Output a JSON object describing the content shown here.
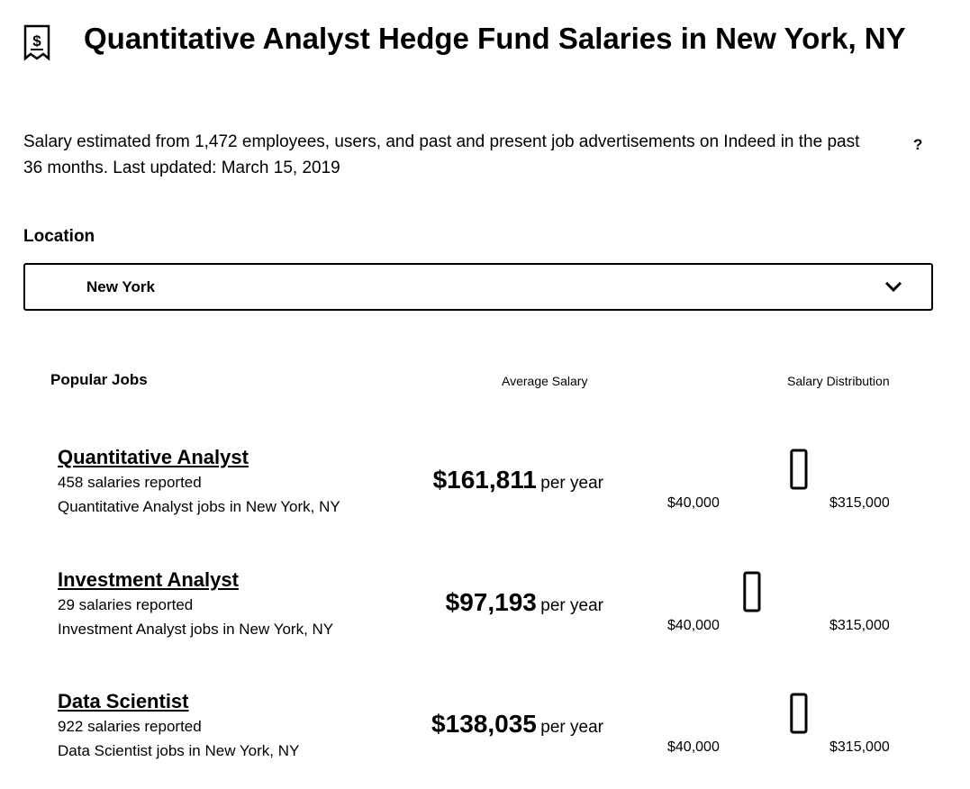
{
  "header": {
    "title": "Quantitative Analyst Hedge Fund Salaries in New York, NY",
    "icon": "receipt-dollar-icon"
  },
  "subtitle": "Salary estimated from 1,472 employees, users, and past and present job advertisements on Indeed in the past 36 months. Last updated: March 15, 2019",
  "help": "?",
  "location": {
    "label": "Location",
    "value": "New York"
  },
  "columns": {
    "jobs": "Popular Jobs",
    "average": "Average Salary",
    "distribution": "Salary Distribution"
  },
  "jobs": [
    {
      "title": "Quantitative Analyst",
      "count": "458 salaries reported",
      "link": "Quantitative Analyst jobs in New York, NY",
      "salary": "$161,811",
      "period": "per year",
      "min": "$40,000",
      "max": "$315,000",
      "distribution": [
        0,
        0,
        0,
        0,
        0,
        1,
        0,
        0,
        0,
        0
      ]
    },
    {
      "title": "Investment Analyst",
      "count": "29 salaries reported",
      "link": "Investment Analyst jobs in New York, NY",
      "salary": "$97,193",
      "period": "per year",
      "min": "$40,000",
      "max": "$315,000",
      "distribution": [
        0,
        0,
        0,
        1,
        0,
        0,
        0,
        0.03,
        0,
        0
      ]
    },
    {
      "title": "Data Scientist",
      "count": "922 salaries reported",
      "link": "Data Scientist jobs in New York, NY",
      "salary": "$138,035",
      "period": "per year",
      "min": "$40,000",
      "max": "$315,000",
      "distribution": [
        0.03,
        0,
        0,
        0,
        0,
        1,
        0,
        0,
        0.03,
        0.03
      ]
    }
  ]
}
